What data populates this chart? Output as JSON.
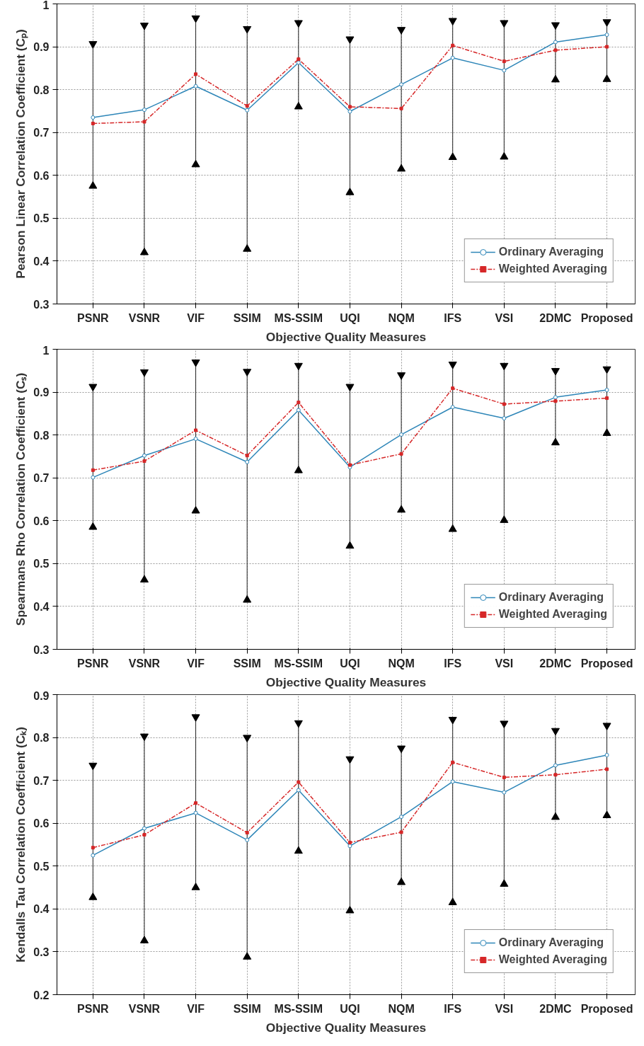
{
  "chart_data": [
    {
      "type": "line",
      "xlabel": "Objective Quality Measures",
      "ylabel": "Pearson Linear Correlation Coefficient (Cₚ)",
      "categories": [
        "PSNR",
        "VSNR",
        "VIF",
        "SSIM",
        "MS-SSIM",
        "UQI",
        "NQM",
        "IFS",
        "VSI",
        "2DMC",
        "Proposed"
      ],
      "ylim": [
        0.3,
        1
      ],
      "yticks": [
        0.3,
        0.4,
        0.5,
        0.6,
        0.7,
        0.8,
        0.9,
        1
      ],
      "grid": true,
      "legend": "bottom right",
      "series": [
        {
          "name": "Ordinary Averaging",
          "color": "#2e86b8",
          "marker": "circle",
          "line_style": "solid",
          "values": [
            0.735,
            0.753,
            0.808,
            0.752,
            0.863,
            0.749,
            0.812,
            0.874,
            0.845,
            0.911,
            0.928
          ]
        },
        {
          "name": "Weighted Averaging",
          "color": "#d62728",
          "marker": "square",
          "line_style": "dashed",
          "values": [
            0.721,
            0.725,
            0.836,
            0.762,
            0.871,
            0.76,
            0.756,
            0.903,
            0.866,
            0.892,
            0.9
          ]
        },
        {
          "type": "scatter",
          "color": "#000000",
          "marker": "triangle",
          "values": [
            0.907,
            0.95,
            0.967,
            0.942,
            0.956,
            0.918,
            0.94,
            0.961,
            0.956,
            0.951,
            0.958
          ]
        },
        {
          "type": "scatter",
          "color": "#000000",
          "marker": "triangle",
          "values": [
            0.575,
            0.42,
            0.625,
            0.428,
            0.76,
            0.56,
            0.615,
            0.642,
            0.643,
            0.823,
            0.824
          ]
        }
      ]
    },
    {
      "type": "line",
      "xlabel": "Objective Quality Measures",
      "ylabel": "Spearmans Rho Correlation Coefficient (Cₛ)",
      "categories": [
        "PSNR",
        "VSNR",
        "VIF",
        "SSIM",
        "MS-SSIM",
        "UQI",
        "NQM",
        "IFS",
        "VSI",
        "2DMC",
        "Proposed"
      ],
      "ylim": [
        0.3,
        1
      ],
      "yticks": [
        0.3,
        0.4,
        0.5,
        0.6,
        0.7,
        0.8,
        0.9,
        1
      ],
      "grid": true,
      "legend": "bottom right",
      "series": [
        {
          "name": "Ordinary Averaging",
          "color": "#2e86b8",
          "marker": "circle",
          "line_style": "solid",
          "values": [
            0.701,
            0.752,
            0.791,
            0.737,
            0.858,
            0.725,
            0.801,
            0.865,
            0.839,
            0.888,
            0.905
          ]
        },
        {
          "name": "Weighted Averaging",
          "color": "#d62728",
          "marker": "square",
          "line_style": "dashed",
          "values": [
            0.718,
            0.739,
            0.811,
            0.752,
            0.876,
            0.73,
            0.756,
            0.909,
            0.872,
            0.879,
            0.886
          ]
        },
        {
          "type": "scatter",
          "color": "#000000",
          "marker": "triangle",
          "values": [
            0.913,
            0.947,
            0.97,
            0.948,
            0.962,
            0.913,
            0.94,
            0.965,
            0.962,
            0.95,
            0.954
          ]
        },
        {
          "type": "scatter",
          "color": "#000000",
          "marker": "triangle",
          "values": [
            0.585,
            0.462,
            0.623,
            0.415,
            0.717,
            0.541,
            0.625,
            0.58,
            0.601,
            0.782,
            0.804
          ]
        }
      ]
    },
    {
      "type": "line",
      "xlabel": "Objective Quality Measures",
      "ylabel": "Kendalls Tau Correlation Coefficient (Cₖ)",
      "categories": [
        "PSNR",
        "VSNR",
        "VIF",
        "SSIM",
        "MS-SSIM",
        "UQI",
        "NQM",
        "IFS",
        "VSI",
        "2DMC",
        "Proposed"
      ],
      "ylim": [
        0.2,
        0.9
      ],
      "yticks": [
        0.2,
        0.3,
        0.4,
        0.5,
        0.6,
        0.7,
        0.8,
        0.9
      ],
      "grid": true,
      "legend": "bottom right",
      "series": [
        {
          "name": "Ordinary Averaging",
          "color": "#2e86b8",
          "marker": "circle",
          "line_style": "solid",
          "values": [
            0.525,
            0.588,
            0.624,
            0.561,
            0.677,
            0.547,
            0.615,
            0.697,
            0.672,
            0.735,
            0.759
          ]
        },
        {
          "name": "Weighted Averaging",
          "color": "#d62728",
          "marker": "square",
          "line_style": "dashed",
          "values": [
            0.543,
            0.573,
            0.647,
            0.578,
            0.696,
            0.555,
            0.579,
            0.742,
            0.707,
            0.713,
            0.726
          ]
        },
        {
          "type": "scatter",
          "color": "#000000",
          "marker": "triangle",
          "values": [
            0.735,
            0.803,
            0.848,
            0.8,
            0.834,
            0.75,
            0.775,
            0.842,
            0.833,
            0.816,
            0.828
          ]
        },
        {
          "type": "scatter",
          "color": "#000000",
          "marker": "triangle",
          "values": [
            0.427,
            0.326,
            0.45,
            0.288,
            0.535,
            0.396,
            0.462,
            0.415,
            0.458,
            0.614,
            0.618
          ]
        }
      ]
    }
  ]
}
